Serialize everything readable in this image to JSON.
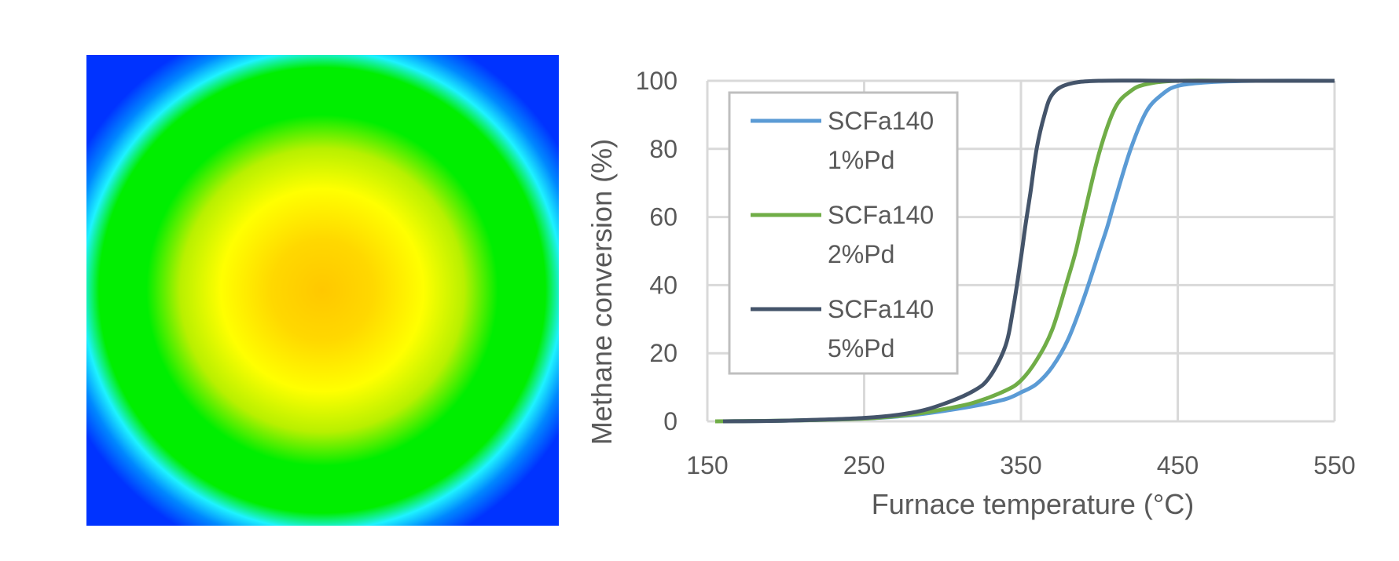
{
  "heatmap": {
    "colors": {
      "edge": "#0033ff",
      "ring": "#1ef2ff",
      "green": "#00ee00",
      "yellowgreen": "#b8f000",
      "yellow": "#ffff00",
      "center": "#ffc800"
    }
  },
  "chart_data": {
    "type": "line",
    "xlabel": "Furnace temperature (°C)",
    "ylabel": "Methane conversion (%)",
    "xlim": [
      150,
      550
    ],
    "ylim": [
      0,
      100
    ],
    "xticks": [
      "150",
      "250",
      "350",
      "450",
      "550"
    ],
    "yticks": [
      "0",
      "20",
      "40",
      "60",
      "80",
      "100"
    ],
    "grid": true,
    "legend_position": "top-left",
    "series": [
      {
        "name_lines": [
          "SCFa140",
          "1%Pd"
        ],
        "color": "#5b9bd5",
        "x": [
          160,
          200,
          250,
          280,
          300,
          320,
          340,
          350,
          360,
          370,
          380,
          390,
          400,
          405,
          410,
          420,
          430,
          440,
          450,
          470,
          500,
          550
        ],
        "y": [
          0,
          0.2,
          0.8,
          1.8,
          3.0,
          4.5,
          6.5,
          8.5,
          11,
          16,
          24,
          36,
          50,
          57,
          65,
          80,
          91,
          96,
          98.5,
          99.6,
          100,
          100
        ]
      },
      {
        "name_lines": [
          "SCFa140",
          "2%Pd"
        ],
        "color": "#70ad47",
        "x": [
          155,
          200,
          250,
          280,
          300,
          320,
          340,
          350,
          360,
          370,
          380,
          385,
          390,
          400,
          410,
          420,
          430,
          450,
          500,
          550
        ],
        "y": [
          0,
          0.2,
          0.8,
          2.0,
          3.5,
          5.5,
          9,
          12,
          18,
          27,
          42,
          50,
          60,
          79,
          92,
          97,
          99,
          100,
          100,
          100
        ]
      },
      {
        "name_lines": [
          "SCFa140",
          "5%Pd"
        ],
        "color": "#44546a",
        "x": [
          160,
          200,
          250,
          280,
          300,
          320,
          330,
          340,
          345,
          350,
          353,
          356,
          360,
          365,
          370,
          380,
          400,
          450,
          550
        ],
        "y": [
          0,
          0.2,
          1.0,
          2.5,
          5,
          9,
          13,
          22,
          33,
          48,
          58,
          67,
          80,
          90,
          96,
          99,
          100,
          100,
          100
        ]
      }
    ]
  }
}
